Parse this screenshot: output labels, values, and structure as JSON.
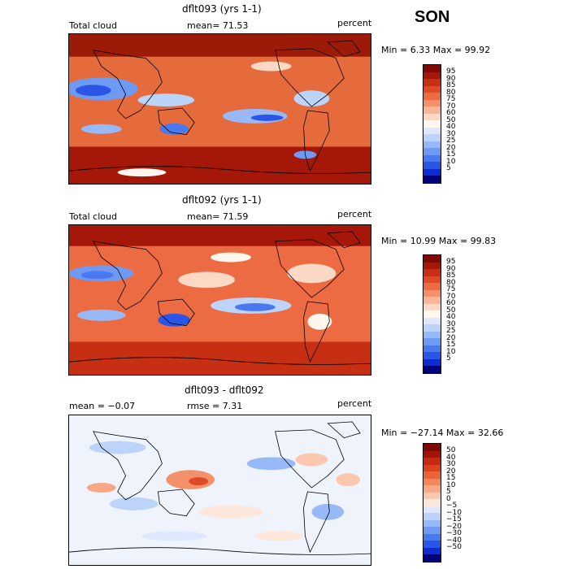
{
  "season": "SON",
  "panels": [
    {
      "id": "top",
      "title": "dflt093 (yrs 1-1)",
      "left_label": "Total cloud",
      "mid_label": "mean=  71.53",
      "units": "percent",
      "minmax": "Min =   6.33 Max =  99.92",
      "colorbar": {
        "colors": [
          "#00007a",
          "#0d2cd2",
          "#2b55e6",
          "#4a78ee",
          "#6f9af3",
          "#97b9f7",
          "#bcd3fa",
          "#dde8fc",
          "#fff6ee",
          "#fcd9c5",
          "#f9b797",
          "#f5916a",
          "#ec6b43",
          "#df4a26",
          "#c62f12",
          "#a51708",
          "#7e0803"
        ],
        "labels": [
          "95",
          "90",
          "85",
          "80",
          "75",
          "70",
          "60",
          "50",
          "40",
          "30",
          "25",
          "20",
          "15",
          "10",
          "5"
        ]
      }
    },
    {
      "id": "middle",
      "title": "dflt092 (yrs 1-1)",
      "left_label": "Total cloud",
      "mid_label": "mean=  71.59",
      "units": "percent",
      "minmax": "Min =  10.99 Max =  99.83",
      "colorbar": {
        "colors": [
          "#00007a",
          "#0d2cd2",
          "#2b55e6",
          "#4a78ee",
          "#6f9af3",
          "#97b9f7",
          "#bcd3fa",
          "#dde8fc",
          "#fff6ee",
          "#fcd9c5",
          "#f9b797",
          "#f5916a",
          "#ec6b43",
          "#df4a26",
          "#c62f12",
          "#a51708",
          "#7e0803"
        ],
        "labels": [
          "95",
          "90",
          "85",
          "80",
          "75",
          "70",
          "60",
          "50",
          "40",
          "30",
          "25",
          "20",
          "15",
          "10",
          "5"
        ]
      }
    },
    {
      "id": "bottom",
      "title": "dflt093 - dflt092",
      "left_label": "mean =  −0.07",
      "mid_label": "rmse =   7.31",
      "units": "percent",
      "minmax": "Min = −27.14 Max =  32.66",
      "colorbar": {
        "colors": [
          "#00007a",
          "#0d2cd2",
          "#2b55e6",
          "#4a78ee",
          "#6f9af3",
          "#97b9f7",
          "#bcd3fa",
          "#dde8fc",
          "#fde6da",
          "#fbc8ad",
          "#f8a883",
          "#f3875b",
          "#eb6439",
          "#dc4220",
          "#c42a10",
          "#a31407",
          "#7e0803"
        ],
        "labels": [
          "50",
          "40",
          "30",
          "20",
          "15",
          "10",
          "5",
          "0",
          "−5",
          "−10",
          "−15",
          "−20",
          "−30",
          "−40",
          "−50"
        ]
      }
    }
  ]
}
